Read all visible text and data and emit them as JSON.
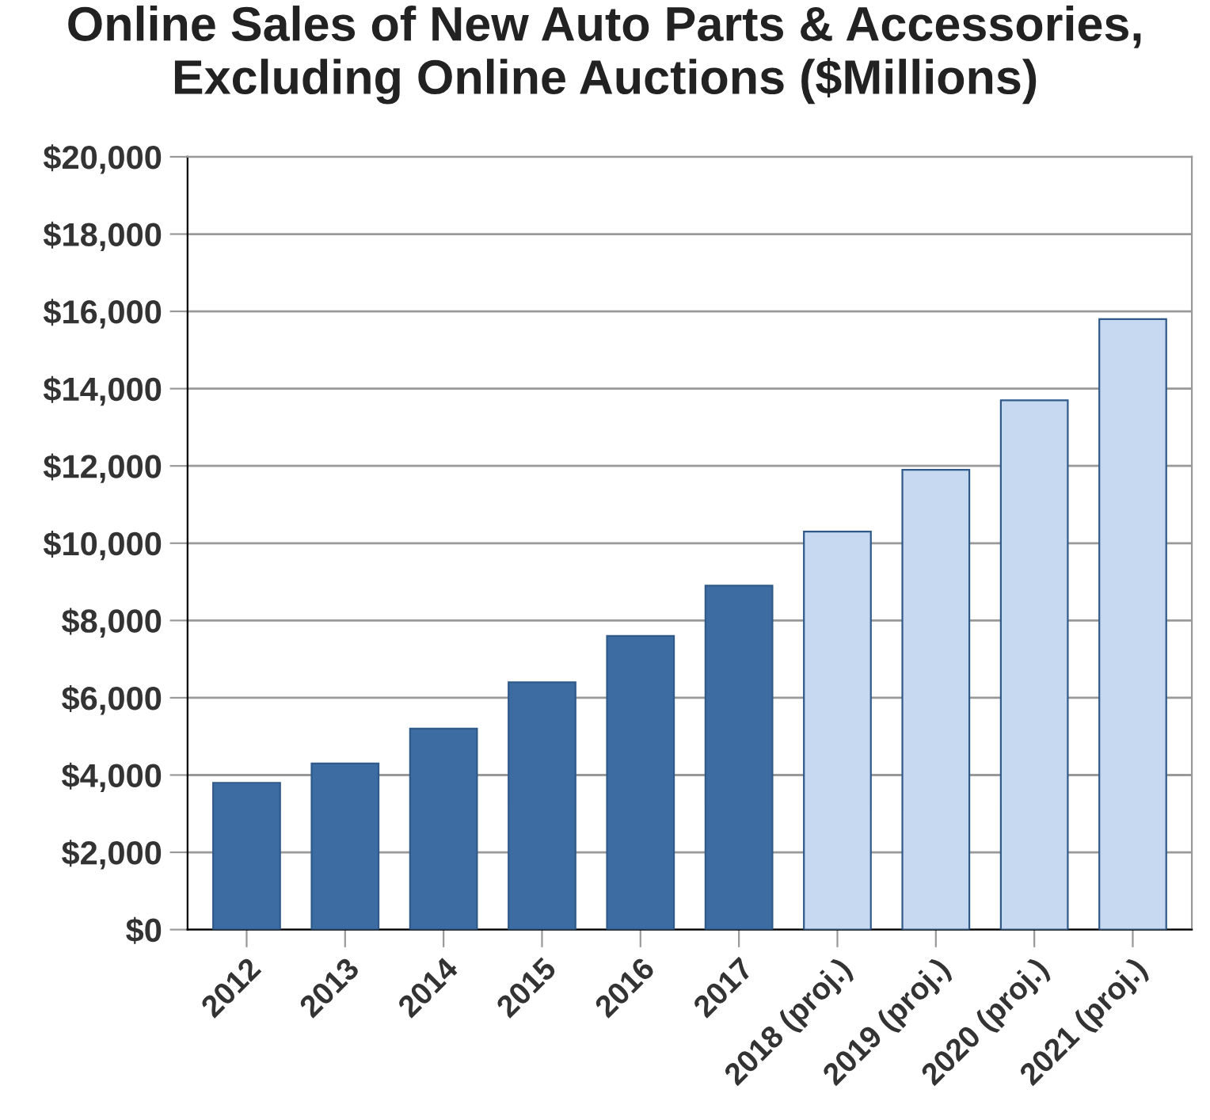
{
  "chart_data": {
    "type": "bar",
    "title": "Online Sales of New Auto Parts & Accessories,\nExcluding Online Auctions ($Millions)",
    "categories": [
      "2012",
      "2013",
      "2014",
      "2015",
      "2016",
      "2017",
      "2018 (proj.)",
      "2019 (proj.)",
      "2020 (proj.)",
      "2021 (proj.)"
    ],
    "values": [
      3800,
      4300,
      5200,
      6400,
      7600,
      8900,
      10300,
      11900,
      13700,
      15800
    ],
    "colors": [
      "#3d6ca3",
      "#3d6ca3",
      "#3d6ca3",
      "#3d6ca3",
      "#3d6ca3",
      "#3d6ca3",
      "#c6d9f1",
      "#c6d9f1",
      "#c6d9f1",
      "#c6d9f1"
    ],
    "ylim": [
      0,
      20000
    ],
    "yticks": [
      {
        "value": 0,
        "label": "$0"
      },
      {
        "value": 2000,
        "label": "$2,000"
      },
      {
        "value": 4000,
        "label": "$4,000"
      },
      {
        "value": 6000,
        "label": "$6,000"
      },
      {
        "value": 8000,
        "label": "$8,000"
      },
      {
        "value": 10000,
        "label": "$10,000"
      },
      {
        "value": 12000,
        "label": "$12,000"
      },
      {
        "value": 14000,
        "label": "$14,000"
      },
      {
        "value": 16000,
        "label": "$16,000"
      },
      {
        "value": 18000,
        "label": "$18,000"
      },
      {
        "value": 20000,
        "label": "$20,000"
      }
    ],
    "grid": "y",
    "legend": false
  }
}
